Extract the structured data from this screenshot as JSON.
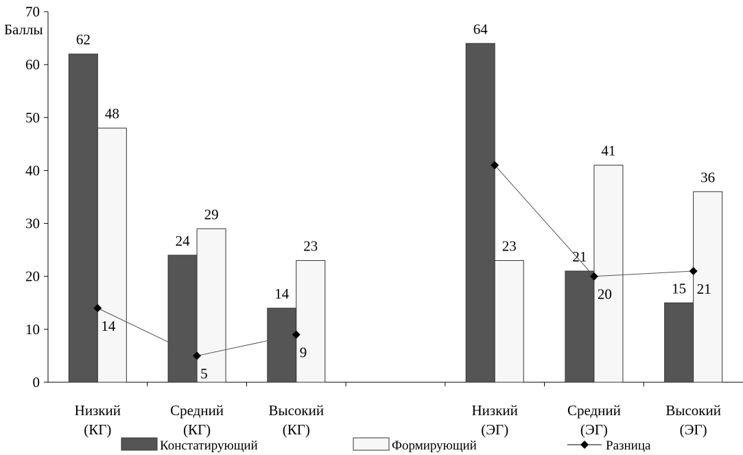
{
  "chart_data": {
    "type": "bar",
    "ylabel": "Баллы",
    "ylim": [
      0,
      70
    ],
    "yticks": [
      0,
      10,
      20,
      30,
      40,
      50,
      60,
      70
    ],
    "categories": [
      "Низкий (КГ)",
      "Средний (КГ)",
      "Высокий (КГ)",
      "",
      "Низкий (ЭГ)",
      "Средний (ЭГ)",
      "Высокий (ЭГ)"
    ],
    "series": [
      {
        "name": "Констатирующий",
        "kind": "bar",
        "color": "#555555",
        "values": [
          62,
          24,
          14,
          null,
          64,
          21,
          15
        ]
      },
      {
        "name": "Формирующий",
        "kind": "bar",
        "color": "#f7f7f7",
        "values": [
          48,
          29,
          23,
          null,
          23,
          41,
          36
        ]
      },
      {
        "name": "Разница",
        "kind": "line",
        "color": "#000000",
        "values": [
          14,
          5,
          9,
          null,
          41,
          20,
          21
        ]
      }
    ],
    "data_labels": {
      "Констатирующий": [
        "62",
        "24",
        "14",
        "",
        "64",
        "21",
        "15"
      ],
      "Формирующий": [
        "48",
        "29",
        "23",
        "",
        "23",
        "41",
        "36"
      ],
      "Разница": [
        "14",
        "5",
        "9",
        "",
        "",
        "20",
        "21"
      ]
    },
    "legend": {
      "position": "bottom",
      "items": [
        "Констатирующий",
        "Формирующий",
        "Разница"
      ]
    },
    "grid": false
  }
}
